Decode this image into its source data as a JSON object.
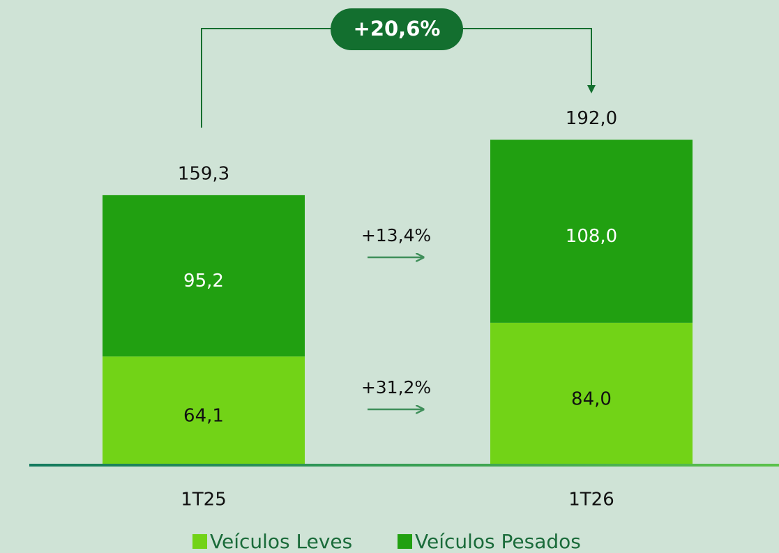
{
  "chart_data": {
    "type": "stacked_bar",
    "categories": [
      "1T25",
      "1T26"
    ],
    "series": [
      {
        "name": "Veículos Leves",
        "color": "#72d317",
        "values": [
          64.1,
          84.0
        ],
        "value_labels": [
          "64,1",
          "84,0"
        ],
        "change_label": "+31,2%"
      },
      {
        "name": "Veículos Pesados",
        "color": "#21a011",
        "values": [
          95.2,
          108.0
        ],
        "value_labels": [
          "95,2",
          "108,0"
        ],
        "change_label": "+13,4%"
      }
    ],
    "totals": [
      159.3,
      192.0
    ],
    "total_labels": [
      "159,3",
      "192,0"
    ],
    "total_change_label": "+20,6%",
    "ylim": [
      0,
      200
    ]
  }
}
